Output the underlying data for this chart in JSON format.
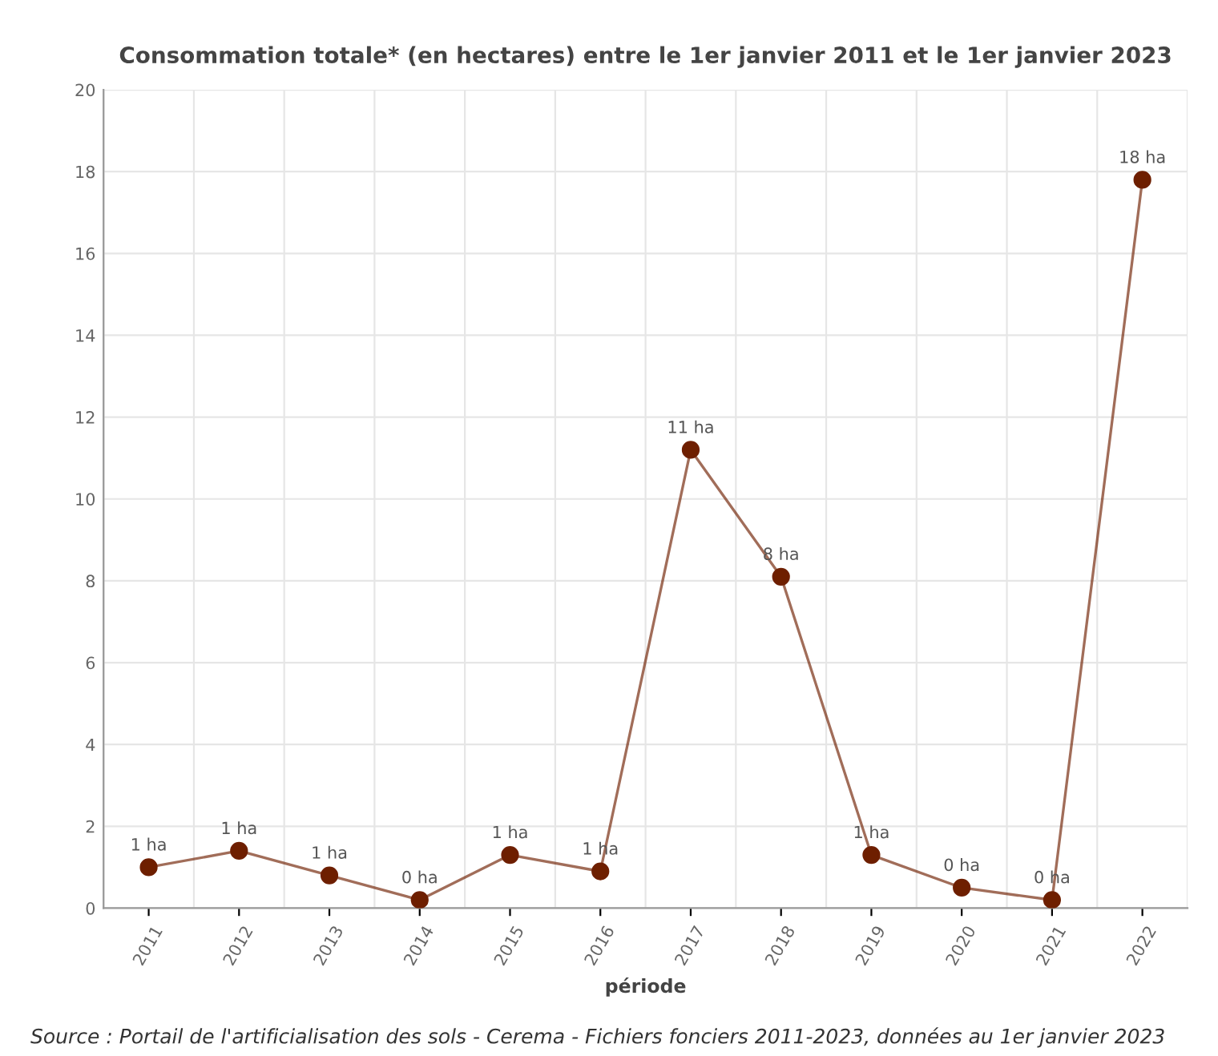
{
  "chart_data": {
    "type": "line",
    "title": "Consommation totale* (en hectares) entre le 1er janvier 2011 et le 1er janvier 2023",
    "xlabel": "période",
    "categories": [
      "2011",
      "2012",
      "2013",
      "2014",
      "2015",
      "2016",
      "2017",
      "2018",
      "2019",
      "2020",
      "2021",
      "2022"
    ],
    "series": [
      {
        "color": "#6e1f00",
        "values": [
          1.0,
          1.4,
          0.8,
          0.2,
          1.3,
          0.9,
          11.2,
          8.1,
          1.3,
          0.5,
          0.2,
          17.8
        ],
        "value_labels": [
          "1 ha",
          "1 ha",
          "1 ha",
          "0 ha",
          "1 ha",
          "1 ha",
          "11 ha",
          "8 ha",
          "1 ha",
          "0 ha",
          "0 ha",
          "18 ha"
        ]
      }
    ],
    "ylim": [
      0,
      20
    ],
    "yticks": [
      0,
      2,
      4,
      6,
      8,
      10,
      12,
      14,
      16,
      18,
      20
    ],
    "grid": true,
    "marker": "circle",
    "line_style": "solid",
    "annotations": [
      "Source : Portail de l'artificialisation des sols - Cerema - Fichiers fonciers 2011-2023, données au 1er janvier 2023"
    ]
  }
}
